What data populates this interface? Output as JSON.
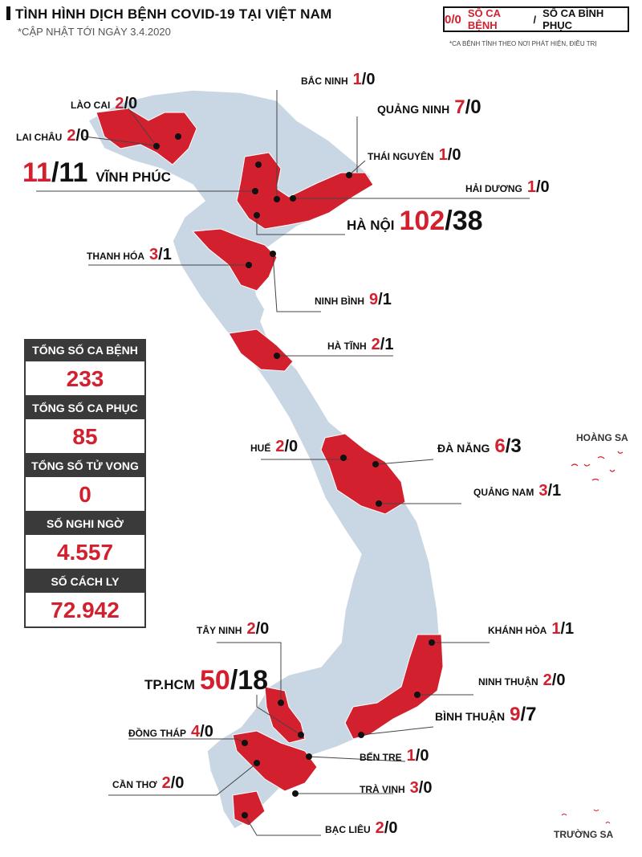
{
  "title": "TÌNH HÌNH DỊCH BỆNH COVID-19 TẠI VIỆT NAM",
  "subtitle": "*CẬP NHẬT TỚI NGÀY 3.4.2020",
  "legend": {
    "sample": "0/0",
    "cases_label": "SỐ CA BỆNH",
    "separator": "/",
    "recovered_label": "SỐ CA BÌNH PHỤC",
    "note": "*CA BỆNH TÍNH THEO NƠI PHÁT HIỆN, ĐIỀU TRỊ"
  },
  "colors": {
    "accent": "#d3202e",
    "land": "#c9d6e3",
    "dark": "#3a3a3a"
  },
  "provinces": [
    {
      "name": "LÀO CAI",
      "cases": "2",
      "recovered": "0"
    },
    {
      "name": "LAI CHÂU",
      "cases": "2",
      "recovered": "0"
    },
    {
      "name": "VĨNH PHÚC",
      "cases": "11",
      "recovered": "11"
    },
    {
      "name": "BẮC NINH",
      "cases": "1",
      "recovered": "0"
    },
    {
      "name": "QUẢNG NINH",
      "cases": "7",
      "recovered": "0"
    },
    {
      "name": "THÁI NGUYÊN",
      "cases": "1",
      "recovered": "0"
    },
    {
      "name": "HẢI DƯƠNG",
      "cases": "1",
      "recovered": "0"
    },
    {
      "name": "HÀ NỘI",
      "cases": "102",
      "recovered": "38"
    },
    {
      "name": "THANH HÓA",
      "cases": "3",
      "recovered": "1"
    },
    {
      "name": "NINH BÌNH",
      "cases": "9",
      "recovered": "1"
    },
    {
      "name": "HÀ TĨNH",
      "cases": "2",
      "recovered": "1"
    },
    {
      "name": "HUẾ",
      "cases": "2",
      "recovered": "0"
    },
    {
      "name": "ĐÀ NẴNG",
      "cases": "6",
      "recovered": "3"
    },
    {
      "name": "QUẢNG NAM",
      "cases": "3",
      "recovered": "1"
    },
    {
      "name": "KHÁNH HÒA",
      "cases": "1",
      "recovered": "1"
    },
    {
      "name": "NINH THUẬN",
      "cases": "2",
      "recovered": "0"
    },
    {
      "name": "BÌNH THUẬN",
      "cases": "9",
      "recovered": "7"
    },
    {
      "name": "TÂY NINH",
      "cases": "2",
      "recovered": "0"
    },
    {
      "name": "TP.HCM",
      "cases": "50",
      "recovered": "18"
    },
    {
      "name": "ĐỒNG THÁP",
      "cases": "4",
      "recovered": "0"
    },
    {
      "name": "CẦN THƠ",
      "cases": "2",
      "recovered": "0"
    },
    {
      "name": "BẾN TRE",
      "cases": "1",
      "recovered": "0"
    },
    {
      "name": "TRÀ VINH",
      "cases": "3",
      "recovered": "0"
    },
    {
      "name": "BẠC LIÊU",
      "cases": "2",
      "recovered": "0"
    }
  ],
  "stats": [
    {
      "label": "TỔNG SỐ CA BỆNH",
      "value": "233"
    },
    {
      "label": "TỔNG SỐ CA PHỤC HỒI",
      "value": "85"
    },
    {
      "label": "TỔNG SỐ TỬ VONG",
      "value": "0"
    },
    {
      "label": "SỐ NGHI NGỜ",
      "value": "4.557"
    },
    {
      "label": "SỐ CÁCH LY",
      "value": "72.942"
    }
  ],
  "islands": {
    "paracel": "HOÀNG SA",
    "spratly": "TRƯỜNG SA"
  }
}
